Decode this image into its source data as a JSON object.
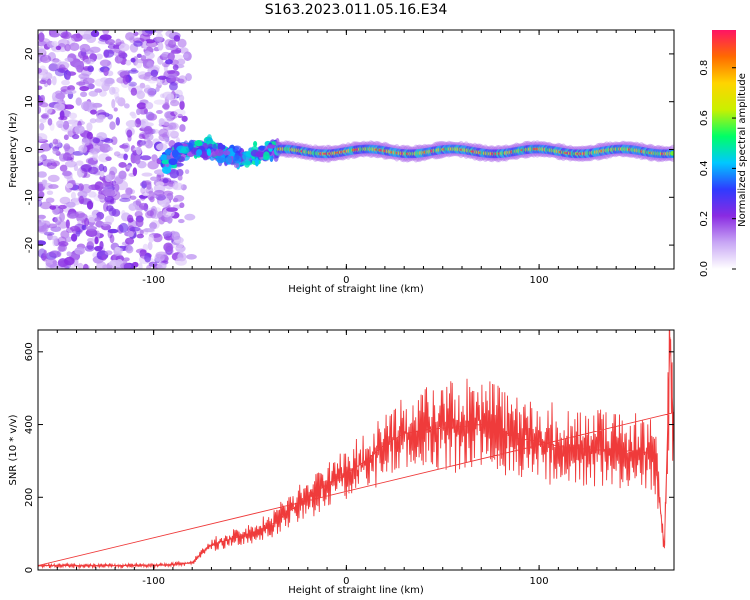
{
  "figure": {
    "title": "S163.2023.011.05.16.E34"
  },
  "colors": {
    "snr_line": "#ef3b3b",
    "colormap": [
      "#ffffff",
      "#c8a6f5",
      "#8a2be2",
      "#2f3bff",
      "#00c8ff",
      "#00ff66",
      "#c9f000",
      "#ffd400",
      "#ff6a00",
      "#ff1464"
    ]
  },
  "chart_data": [
    {
      "type": "heatmap",
      "xlabel": "Height of straight line (km)",
      "ylabel": "Frequency (Hz)",
      "xlim": [
        -160,
        170
      ],
      "ylim": [
        -25,
        25
      ],
      "xticks": [
        -100,
        0,
        100
      ],
      "yticks": [
        -20,
        -10,
        0,
        10,
        20
      ],
      "colorbar": {
        "label": "Normalized spectral amplitude",
        "range": [
          0,
          0.95
        ],
        "ticks": [
          0.0,
          0.2,
          0.4,
          0.6,
          0.8
        ]
      },
      "regions": [
        {
          "x_range": [
            -160,
            -95
          ],
          "description_values": {
            "freq_spread_hz": [
              -25,
              25
            ],
            "amplitude": [
              0.05,
              0.25
            ]
          }
        },
        {
          "x_range": [
            -95,
            -35
          ],
          "description_values": {
            "freq_center_hz": [
              -3,
              3
            ],
            "amplitude": [
              0.2,
              0.5
            ]
          }
        },
        {
          "x_range": [
            -35,
            170
          ],
          "description_values": {
            "freq_center_hz": [
              -1,
              0.5
            ],
            "amplitude": [
              0.3,
              0.9
            ]
          }
        }
      ]
    },
    {
      "type": "line",
      "xlabel": "Height of straight line (km)",
      "ylabel": "SNR (10 * v/v)",
      "xlim": [
        -160,
        170
      ],
      "ylim": [
        0,
        660
      ],
      "xticks": [
        -100,
        0,
        100
      ],
      "yticks": [
        0,
        200,
        400,
        600
      ],
      "series": [
        {
          "x": [
            -160,
            -140,
            -120,
            -100,
            -90,
            -80,
            -75,
            -70,
            -60,
            -50,
            -40,
            -30,
            -20,
            -10,
            0,
            10,
            20,
            30,
            40,
            50,
            60,
            70,
            80,
            90,
            100,
            110,
            120,
            130,
            140,
            150,
            160,
            165,
            168,
            170
          ],
          "values": [
            12,
            12,
            12,
            13,
            15,
            20,
            45,
            70,
            85,
            100,
            120,
            160,
            200,
            235,
            265,
            300,
            345,
            375,
            385,
            390,
            395,
            400,
            385,
            360,
            355,
            340,
            335,
            330,
            330,
            325,
            320,
            60,
            640,
            350
          ]
        }
      ]
    }
  ]
}
